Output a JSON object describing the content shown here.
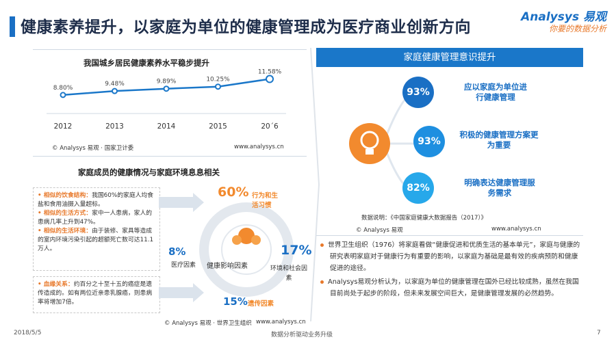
{
  "page": {
    "title": "健康素养提升，以家庭为单位的健康管理成为医疗商业创新方向",
    "logo_line1": "Analysys 易观",
    "logo_line2": "你要的数据分析"
  },
  "chart_data": {
    "type": "line",
    "title": "我国城乡居民健康素养水平稳步提升",
    "categories": [
      "2012",
      "2013",
      "2014",
      "2015",
      "20´6"
    ],
    "values": [
      8.8,
      9.48,
      9.89,
      10.25,
      11.58
    ],
    "labels": [
      "8.80%",
      "9.48%",
      "9.89%",
      "10.25%",
      "11.58%"
    ],
    "ylim": [
      7.0,
      12.0
    ],
    "color": "#1a77c9",
    "source": "© Analysys 易观 · 国家卫计委",
    "url": "www.analysys.cn"
  },
  "left_lower": {
    "title": "家庭成员的健康情况与家庭环境息息相关",
    "bullets": [
      {
        "head": "相似的饮食结构：",
        "text": "我国60%的家庭人均食盐和食用油摄入量超标。"
      },
      {
        "head": "相似的生活方式：",
        "text": "家中一人患病，家人的患病几率上升到47%。"
      },
      {
        "head": "相似的生活环境：",
        "text": "由于装修、家具等造成的室内环境污染引起的超额死亡数可达11.1万人。"
      }
    ],
    "blood": {
      "head": "血缘关系：",
      "text": "约百分之十至十五的癌症是遗传造成的。如有两位近亲患乳腺癌，则患病率将增加7倍。"
    },
    "factors": {
      "center": "健康影响因素",
      "behavior_pct": "60%",
      "behavior_label": "行为和生活习惯",
      "medical_pct": "8%",
      "medical_label": "医疗因素",
      "env_pct": "17%",
      "env_label": "环境和社会因素",
      "genetic_pct": "15%",
      "genetic_label": "遗传因素"
    },
    "source": "© Analysys 易观 · 世界卫生组织",
    "url": "www.analysys.cn"
  },
  "right": {
    "header": "家庭健康管理意识提升",
    "items": [
      {
        "pct": "93%",
        "text": "应以家庭为单位进行健康管理",
        "color": "#1a6fc4"
      },
      {
        "pct": "93%",
        "text": "积极的健康管理方案更为重要",
        "color": "#1e8fe0"
      },
      {
        "pct": "82%",
        "text": "明确表达健康管理服务需求",
        "color": "#27a8ea"
      }
    ],
    "note": "数据说明：《中国家庭健康大数据报告（2017）》",
    "source": "© Analysys 易观",
    "url": "www.analysys.cn",
    "paragraphs": [
      "世界卫生组织（1976）将家庭看做“健康促进和优质生活的基本单元”，家庭与健康的研究表明家庭对于健康行为有重要的影响，以家庭为基础是最有效的疾病预防和健康促进的途径。",
      "Analysys易观分析认为，以家庭为单位的健康管理在国外已经比较成熟，虽然在我国目前尚处于起步的阶段，但未来发展空间巨大，是健康管理发展的必然趋势。"
    ]
  },
  "footer": {
    "date": "2018/5/5",
    "center": "数据分析驱动业务升级",
    "page": "7"
  }
}
